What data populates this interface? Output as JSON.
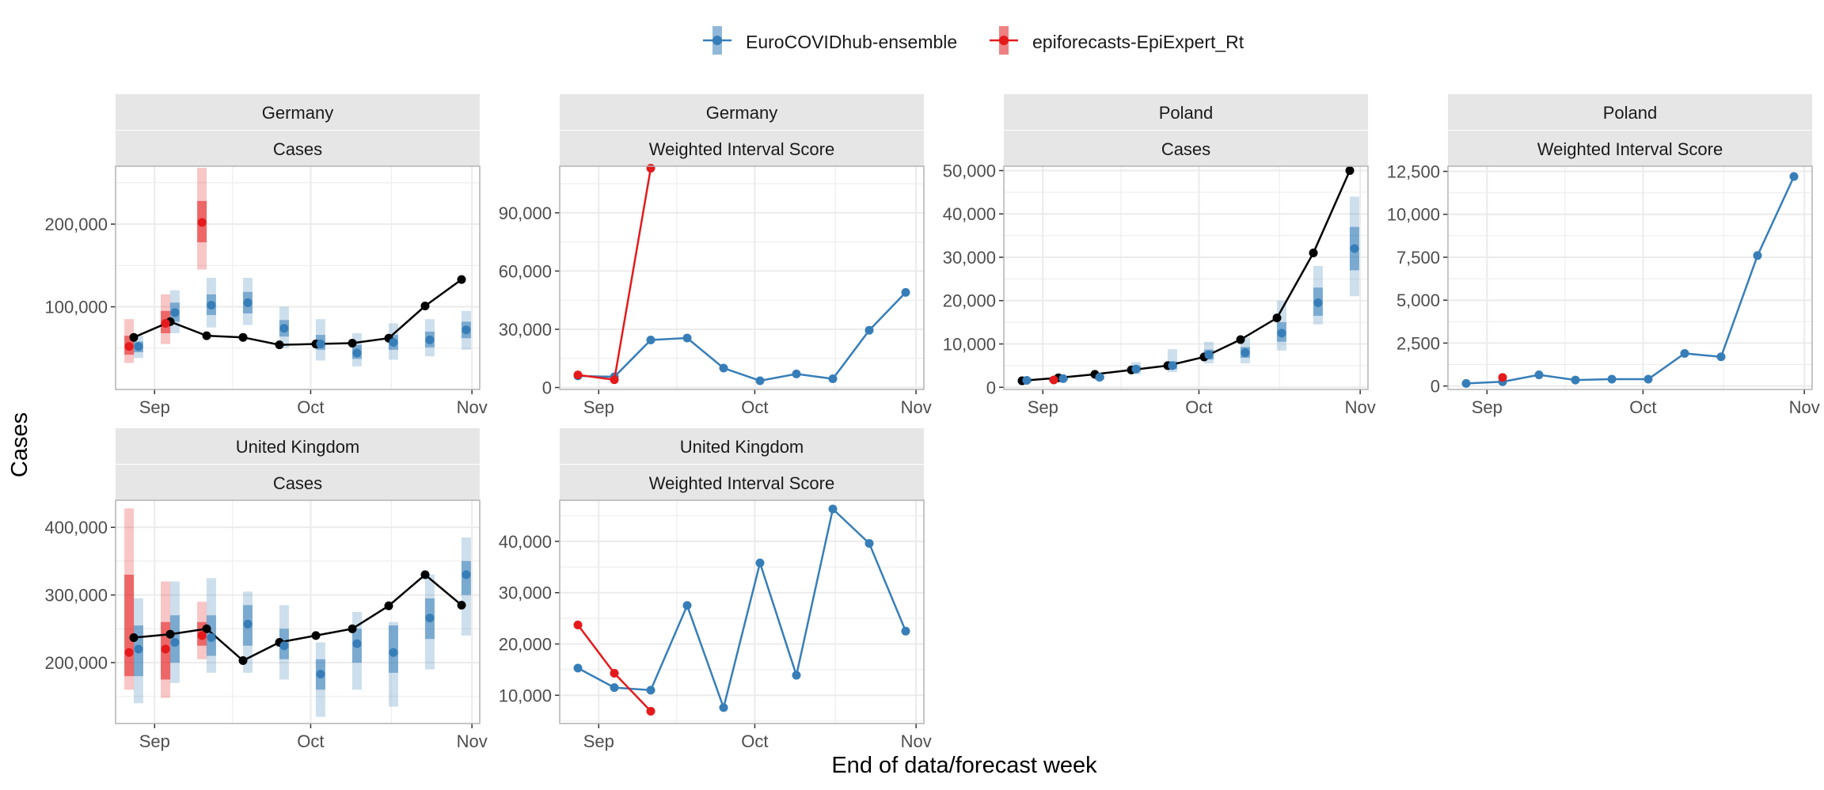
{
  "figure": {
    "ylabel": "Cases",
    "xlabel": "End of data/forecast week"
  },
  "legend": {
    "placement": "top",
    "items": [
      {
        "label": "EuroCOVIDhub-ensemble",
        "color": "#377eb8"
      },
      {
        "label": "epiforecasts-EpiExpert_Rt",
        "color": "#e41a1c"
      }
    ]
  },
  "colors": {
    "observed": "#000000",
    "strip_bg": "#e6e6e6",
    "grid": "#ebebeb",
    "panel_border": "#b3b3b3"
  },
  "chart_data": [
    {
      "type": "line",
      "country": "Germany",
      "target": "Cases",
      "x_ticks": [
        "Sep",
        "Oct",
        "Nov"
      ],
      "y_ticks": [
        "100,000",
        "200,000"
      ],
      "y_tick_values": [
        100000,
        200000
      ],
      "ylim": [
        0,
        270000
      ],
      "weeks": [
        "Aug 28",
        "Sep 4",
        "Sep 11",
        "Sep 18",
        "Sep 25",
        "Oct 2",
        "Oct 9",
        "Oct 16",
        "Oct 23",
        "Oct 30"
      ],
      "observed": [
        63000,
        82000,
        65000,
        63000,
        54000,
        55000,
        56000,
        62000,
        101000,
        133000
      ],
      "forecasts": [
        {
          "name": "EuroCOVIDhub-ensemble",
          "week": [
            "Aug 28",
            "Sep 4",
            "Sep 11",
            "Sep 18",
            "Sep 25",
            "Oct 2",
            "Oct 9",
            "Oct 16",
            "Oct 23",
            "Oct 30"
          ],
          "median": [
            52000,
            93000,
            102000,
            105000,
            74000,
            55000,
            44000,
            57000,
            60000,
            72000
          ],
          "inner": [
            [
              45000,
              58000
            ],
            [
              82000,
              105000
            ],
            [
              90000,
              115000
            ],
            [
              92000,
              118000
            ],
            [
              64000,
              84000
            ],
            [
              48000,
              66000
            ],
            [
              37000,
              54000
            ],
            [
              48000,
              66000
            ],
            [
              51000,
              70000
            ],
            [
              62000,
              82000
            ]
          ],
          "outer": [
            [
              38000,
              65000
            ],
            [
              68000,
              120000
            ],
            [
              75000,
              135000
            ],
            [
              78000,
              135000
            ],
            [
              50000,
              100000
            ],
            [
              35000,
              85000
            ],
            [
              28000,
              68000
            ],
            [
              36000,
              80000
            ],
            [
              40000,
              85000
            ],
            [
              48000,
              95000
            ]
          ]
        },
        {
          "name": "epiforecasts-EpiExpert_Rt",
          "week": [
            "Aug 28",
            "Sep 4",
            "Sep 11"
          ],
          "median": [
            52000,
            80000,
            202000
          ],
          "inner": [
            [
              42000,
              65000
            ],
            [
              68000,
              95000
            ],
            [
              178000,
              228000
            ]
          ],
          "outer": [
            [
              32000,
              85000
            ],
            [
              55000,
              115000
            ],
            [
              145000,
              268000
            ]
          ]
        }
      ]
    },
    {
      "type": "line",
      "country": "Germany",
      "target": "Weighted Interval Score",
      "x_ticks": [
        "Sep",
        "Oct",
        "Nov"
      ],
      "y_ticks": [
        "0",
        "30,000",
        "60,000",
        "90,000"
      ],
      "y_tick_values": [
        0,
        30000,
        60000,
        90000
      ],
      "ylim": [
        -1000,
        114000
      ],
      "series": [
        {
          "name": "EuroCOVIDhub-ensemble",
          "week": [
            "Aug 28",
            "Sep 4",
            "Sep 11",
            "Sep 18",
            "Sep 25",
            "Oct 2",
            "Oct 9",
            "Oct 16",
            "Oct 23",
            "Oct 30"
          ],
          "values": [
            6000,
            5500,
            24500,
            25500,
            10000,
            3500,
            7000,
            4500,
            29500,
            49000
          ]
        },
        {
          "name": "epiforecasts-EpiExpert_Rt",
          "week": [
            "Aug 28",
            "Sep 4",
            "Sep 11"
          ],
          "values": [
            6500,
            4000,
            113000
          ]
        }
      ]
    },
    {
      "type": "line",
      "country": "Poland",
      "target": "Cases",
      "x_ticks": [
        "Sep",
        "Oct",
        "Nov"
      ],
      "y_ticks": [
        "0",
        "10,000",
        "20,000",
        "30,000",
        "40,000",
        "50,000"
      ],
      "y_tick_values": [
        0,
        10000,
        20000,
        30000,
        40000,
        50000
      ],
      "ylim": [
        -500,
        51000
      ],
      "weeks": [
        "Aug 28",
        "Sep 4",
        "Sep 11",
        "Sep 18",
        "Sep 25",
        "Oct 2",
        "Oct 9",
        "Oct 16",
        "Oct 23",
        "Oct 30"
      ],
      "observed": [
        1500,
        2200,
        3000,
        4000,
        5000,
        7000,
        11000,
        16000,
        31000,
        50000
      ],
      "forecasts": [
        {
          "name": "EuroCOVIDhub-ensemble",
          "week": [
            "Aug 28",
            "Sep 4",
            "Sep 11",
            "Sep 18",
            "Sep 25",
            "Oct 2",
            "Oct 9",
            "Oct 16",
            "Oct 23",
            "Oct 30"
          ],
          "median": [
            1600,
            2000,
            2300,
            4200,
            5000,
            7500,
            8000,
            12500,
            19500,
            32000
          ],
          "inner": [
            [
              1300,
              1900
            ],
            [
              1700,
              2300
            ],
            [
              1900,
              2700
            ],
            [
              3600,
              4900
            ],
            [
              4200,
              6000
            ],
            [
              6400,
              8700
            ],
            [
              6800,
              9300
            ],
            [
              10500,
              15000
            ],
            [
              16500,
              23000
            ],
            [
              27000,
              37000
            ]
          ],
          "outer": [
            [
              1000,
              2300
            ],
            [
              1400,
              2700
            ],
            [
              1600,
              3200
            ],
            [
              3000,
              5800
            ],
            [
              3500,
              8800
            ],
            [
              5500,
              10500
            ],
            [
              5500,
              11500
            ],
            [
              8500,
              20000
            ],
            [
              14500,
              28000
            ],
            [
              21000,
              44000
            ]
          ]
        },
        {
          "name": "epiforecasts-EpiExpert_Rt",
          "week": [
            "Sep 4"
          ],
          "median": [
            1700
          ],
          "inner": [
            [
              1500,
              1900
            ]
          ],
          "outer": [
            [
              1300,
              2100
            ]
          ]
        }
      ]
    },
    {
      "type": "line",
      "country": "Poland",
      "target": "Weighted Interval Score",
      "x_ticks": [
        "Sep",
        "Oct",
        "Nov"
      ],
      "y_ticks": [
        "0",
        "2,500",
        "5,000",
        "7,500",
        "10,000",
        "12,500"
      ],
      "y_tick_values": [
        0,
        2500,
        5000,
        7500,
        10000,
        12500
      ],
      "ylim": [
        -200,
        12800
      ],
      "series": [
        {
          "name": "EuroCOVIDhub-ensemble",
          "week": [
            "Aug 28",
            "Sep 4",
            "Sep 11",
            "Sep 18",
            "Sep 25",
            "Oct 2",
            "Oct 9",
            "Oct 16",
            "Oct 23",
            "Oct 30"
          ],
          "values": [
            150,
            250,
            650,
            350,
            400,
            400,
            1900,
            1700,
            7600,
            12200
          ]
        },
        {
          "name": "epiforecasts-EpiExpert_Rt",
          "week": [
            "Sep 4"
          ],
          "values": [
            500
          ]
        }
      ]
    },
    {
      "type": "line",
      "country": "United Kingdom",
      "target": "Cases",
      "x_ticks": [
        "Sep",
        "Oct",
        "Nov"
      ],
      "y_ticks": [
        "200,000",
        "300,000",
        "400,000"
      ],
      "y_tick_values": [
        200000,
        300000,
        400000
      ],
      "ylim": [
        110000,
        440000
      ],
      "weeks": [
        "Aug 28",
        "Sep 4",
        "Sep 11",
        "Sep 18",
        "Sep 25",
        "Oct 2",
        "Oct 9",
        "Oct 16",
        "Oct 23",
        "Oct 30"
      ],
      "observed": [
        237000,
        242000,
        250000,
        203000,
        230000,
        240000,
        250000,
        284000,
        330000,
        285000
      ],
      "forecasts": [
        {
          "name": "EuroCOVIDhub-ensemble",
          "week": [
            "Aug 28",
            "Sep 4",
            "Sep 11",
            "Sep 18",
            "Sep 25",
            "Oct 2",
            "Oct 9",
            "Oct 16",
            "Oct 23",
            "Oct 30"
          ],
          "median": [
            220000,
            230000,
            237000,
            257000,
            225000,
            183000,
            228000,
            215000,
            266000,
            330000
          ],
          "inner": [
            [
              180000,
              255000
            ],
            [
              200000,
              270000
            ],
            [
              210000,
              270000
            ],
            [
              225000,
              285000
            ],
            [
              205000,
              250000
            ],
            [
              160000,
              205000
            ],
            [
              200000,
              250000
            ],
            [
              185000,
              255000
            ],
            [
              235000,
              295000
            ],
            [
              300000,
              350000
            ]
          ],
          "outer": [
            [
              140000,
              295000
            ],
            [
              170000,
              320000
            ],
            [
              185000,
              325000
            ],
            [
              185000,
              305000
            ],
            [
              175000,
              285000
            ],
            [
              120000,
              230000
            ],
            [
              160000,
              275000
            ],
            [
              135000,
              260000
            ],
            [
              190000,
              330000
            ],
            [
              240000,
              385000
            ]
          ]
        },
        {
          "name": "epiforecasts-EpiExpert_Rt",
          "week": [
            "Aug 28",
            "Sep 4",
            "Sep 11"
          ],
          "median": [
            215000,
            220000,
            240000
          ],
          "inner": [
            [
              180000,
              330000
            ],
            [
              175000,
              260000
            ],
            [
              225000,
              260000
            ]
          ],
          "outer": [
            [
              160000,
              428000
            ],
            [
              148000,
              320000
            ],
            [
              205000,
              290000
            ]
          ]
        }
      ]
    },
    {
      "type": "line",
      "country": "United Kingdom",
      "target": "Weighted Interval Score",
      "x_ticks": [
        "Sep",
        "Oct",
        "Nov"
      ],
      "y_ticks": [
        "10,000",
        "20,000",
        "30,000",
        "40,000"
      ],
      "y_tick_values": [
        10000,
        20000,
        30000,
        40000
      ],
      "ylim": [
        4500,
        48000
      ],
      "series": [
        {
          "name": "EuroCOVIDhub-ensemble",
          "week": [
            "Aug 28",
            "Sep 4",
            "Sep 11",
            "Sep 18",
            "Sep 25",
            "Oct 2",
            "Oct 9",
            "Oct 16",
            "Oct 23",
            "Oct 30"
          ],
          "values": [
            15300,
            11500,
            11000,
            27500,
            7600,
            35800,
            13900,
            46300,
            39600,
            22500
          ]
        },
        {
          "name": "epiforecasts-EpiExpert_Rt",
          "week": [
            "Aug 28",
            "Sep 4",
            "Sep 11"
          ],
          "values": [
            23700,
            14300,
            6900
          ]
        }
      ]
    }
  ]
}
